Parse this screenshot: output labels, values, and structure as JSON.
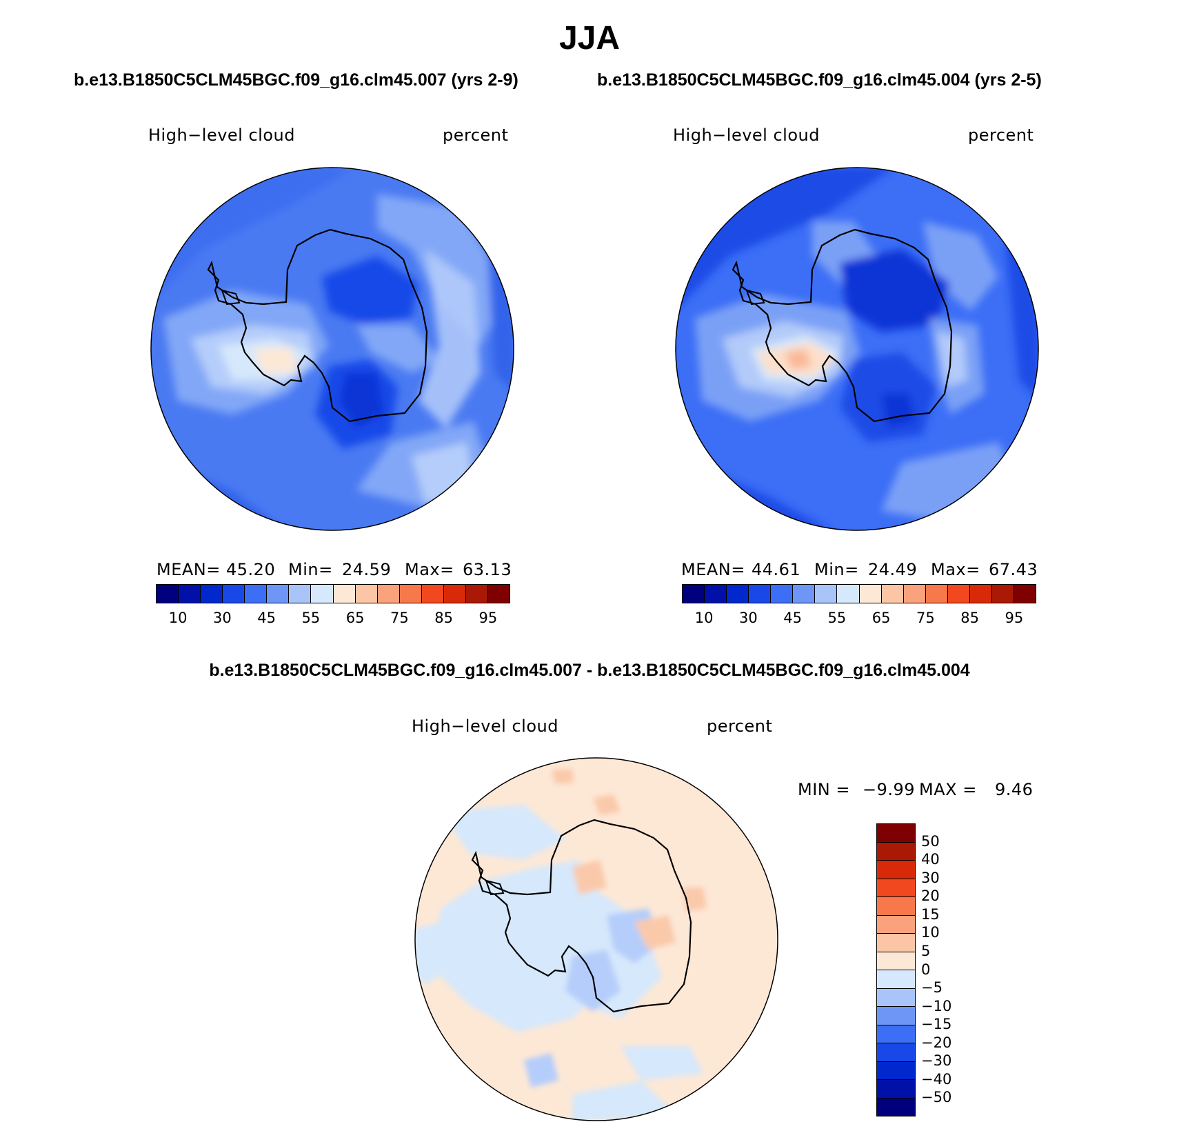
{
  "title": "JJA",
  "panel1": {
    "case": "b.e13.B1850C5CLM45BGC.f09_g16.clm45.007 (yrs 2-9)",
    "variable": "High−level cloud",
    "units": "percent",
    "stats": {
      "mean_label": "MEAN=",
      "mean": "45.20",
      "min_label": "Min=",
      "min": "24.59",
      "max_label": "Max=",
      "max": "63.13"
    }
  },
  "panel2": {
    "case": "b.e13.B1850C5CLM45BGC.f09_g16.clm45.004 (yrs 2-5)",
    "variable": "High−level cloud",
    "units": "percent",
    "stats": {
      "mean_label": "MEAN=",
      "mean": "44.61",
      "min_label": "Min=",
      "min": "24.49",
      "max_label": "Max=",
      "max": "67.43"
    }
  },
  "panel3": {
    "case": "b.e13.B1850C5CLM45BGC.f09_g16.clm45.007 - b.e13.B1850C5CLM45BGC.f09_g16.clm45.004",
    "variable": "High−level cloud",
    "units": "percent",
    "minmax": {
      "min_label": "MIN =",
      "min": "−9.99",
      "max_label": "MAX =",
      "max": "9.46"
    }
  },
  "colorbar_abs": {
    "colors": [
      "#00007f",
      "#0010a8",
      "#0028cc",
      "#1848e8",
      "#3c6ef6",
      "#6e96f6",
      "#a9c4f9",
      "#d6e8fb",
      "#fde8d6",
      "#fcc5a5",
      "#f9a27c",
      "#f7784a",
      "#f2481f",
      "#d82a09",
      "#a91905",
      "#7f0000"
    ],
    "ticks": [
      "10",
      "30",
      "45",
      "55",
      "65",
      "75",
      "85",
      "95"
    ],
    "tick_boundaries": [
      1,
      3,
      5,
      7,
      9,
      11,
      13,
      15
    ]
  },
  "colorbar_diff": {
    "colors_top_to_bottom": [
      "#7f0000",
      "#a91905",
      "#d82a09",
      "#f2481f",
      "#f7784a",
      "#f9a27c",
      "#fcc5a5",
      "#fde8d6",
      "#d6e8fb",
      "#a9c4f9",
      "#6e96f6",
      "#3c6ef6",
      "#1848e8",
      "#0028cc",
      "#0010a8",
      "#00007f"
    ],
    "ticks": [
      "50",
      "40",
      "30",
      "20",
      "15",
      "10",
      "5",
      "0",
      "−5",
      "−10",
      "−15",
      "−20",
      "−30",
      "−40",
      "−50"
    ]
  },
  "map_colors": {
    "p1": {
      "base": "#4a7af2",
      "outer": "#3263ea",
      "light": "#82a7f7",
      "pale": "#b5cdfa",
      "whiteish": "#d6e8fb",
      "dark": "#1848e8",
      "peach": "#fde8d6"
    },
    "p2": {
      "base": "#3c6ef6",
      "outer": "#1d4ce6",
      "light": "#7aa0f6",
      "pale": "#b3cbf9",
      "whiteish": "#d6e8fb",
      "dark": "#0b34d6",
      "peach": "#fde0cb",
      "salmon": "#f9b896"
    },
    "p3": {
      "base": "#fde8d6",
      "blue": "#d6e8fb",
      "midblue": "#b5cdfa",
      "peach": "#fac9aa"
    }
  }
}
